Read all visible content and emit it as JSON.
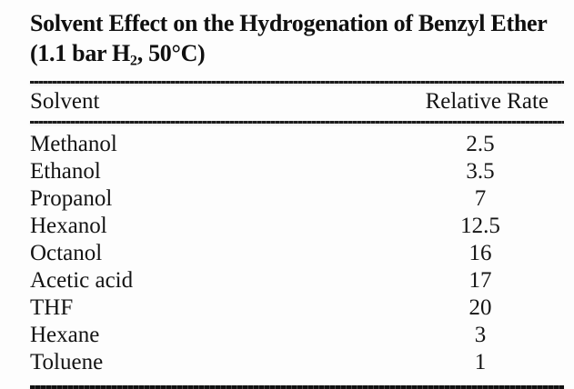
{
  "title": {
    "line1": "Solvent Effect on the Hydrogenation of Benzyl Ether",
    "line2_prefix": "(1.1 bar H",
    "line2_subscript": "2",
    "line2_suffix": ", 50°C)"
  },
  "table": {
    "columns": {
      "solvent": "Solvent",
      "rate": "Relative Rate"
    },
    "rows": [
      {
        "solvent": "Methanol",
        "rate": "2.5"
      },
      {
        "solvent": "Ethanol",
        "rate": "3.5"
      },
      {
        "solvent": "Propanol",
        "rate": "7"
      },
      {
        "solvent": "Hexanol",
        "rate": "12.5"
      },
      {
        "solvent": "Octanol",
        "rate": "16"
      },
      {
        "solvent": "Acetic acid",
        "rate": "17"
      },
      {
        "solvent": "THF",
        "rate": "20"
      },
      {
        "solvent": "Hexane",
        "rate": "3"
      },
      {
        "solvent": "Toluene",
        "rate": "1"
      }
    ]
  },
  "colors": {
    "text": "#141414",
    "rule": "#1c1c1c",
    "background": "#fdfdfd"
  }
}
